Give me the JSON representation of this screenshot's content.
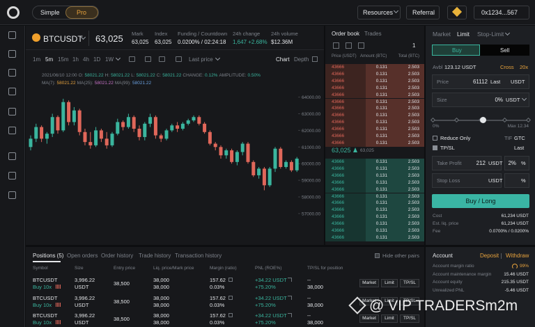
{
  "topbar": {
    "modes": [
      "Simple",
      "Pro"
    ],
    "links": [
      "Resources",
      "Referral"
    ],
    "wallet": "0x1234...567"
  },
  "ticker": {
    "symbol": "BTCUSDT",
    "price": "63,025",
    "stats": [
      {
        "label": "Mark",
        "value": "63,025"
      },
      {
        "label": "Index",
        "value": "63,025"
      },
      {
        "label": "Funding / Countdown",
        "value": "0.0200% / 02:24:18"
      },
      {
        "label": "24h change",
        "value": "1,647 +2.68%"
      },
      {
        "label": "24h volume",
        "value": "$12.36M"
      }
    ]
  },
  "chart_toolbar": {
    "intervals": [
      "1m",
      "5m",
      "15m",
      "1h",
      "4h",
      "1D",
      "1W"
    ],
    "price_type": "Last price",
    "views": [
      "Chart",
      "Depth"
    ]
  },
  "chart_info": {
    "date": "2021/06/10 12:00",
    "ohlc": [
      {
        "label": "O:",
        "value": "58021.22"
      },
      {
        "label": "H:",
        "value": "58021.22"
      },
      {
        "label": "L:",
        "value": "58021.22"
      },
      {
        "label": "C:",
        "value": "58021.22"
      },
      {
        "label": "CHANGE:",
        "value": "0.12%"
      },
      {
        "label": "AMPLITUDE:",
        "value": "0.50%"
      }
    ],
    "ma": [
      {
        "label": "MA(7):",
        "value": "58021.22"
      },
      {
        "label": "MA(25):",
        "value": "58021.22"
      },
      {
        "label": "MA(99):",
        "value": "58021.22"
      }
    ]
  },
  "chart_data": {
    "type": "candlestick",
    "series": {
      "open": [
        61000,
        61500,
        62200,
        61500,
        61800,
        62800,
        62000,
        63700,
        62500,
        63200,
        61900,
        61300,
        61100,
        62000,
        61500,
        61100,
        61800,
        62500,
        62200,
        62800,
        62100,
        61600,
        62400,
        62800,
        61700,
        61500,
        62000,
        62300,
        62100,
        62400,
        62600,
        62800,
        62400,
        61900,
        61200,
        61000,
        60500,
        60800,
        60100,
        60700,
        61200,
        60100,
        59300,
        59700,
        58700,
        59700,
        60900,
        59800,
        60100,
        59600
      ],
      "high": [
        61700,
        62400,
        62300,
        61900,
        63000,
        62900,
        63900,
        63800,
        63400,
        63300,
        62100,
        61900,
        62200,
        62100,
        61900,
        61900,
        62700,
        62600,
        63000,
        62900,
        62300,
        62500,
        63000,
        62900,
        61800,
        62100,
        62400,
        62500,
        62500,
        62700,
        62900,
        62900,
        62500,
        62000,
        61300,
        61100,
        60900,
        60900,
        60800,
        61300,
        61300,
        60200,
        59800,
        59800,
        59800,
        61000,
        61000,
        60200,
        60200,
        60400
      ],
      "low": [
        60800,
        61300,
        61300,
        61200,
        61600,
        61800,
        61900,
        62300,
        62300,
        61700,
        61100,
        60900,
        61000,
        61300,
        60900,
        61000,
        61700,
        62000,
        62100,
        61900,
        61400,
        61400,
        62200,
        61500,
        61300,
        61400,
        61900,
        61900,
        62000,
        62300,
        62500,
        62300,
        61800,
        61100,
        60800,
        60300,
        60300,
        60000,
        59900,
        60500,
        60000,
        59200,
        59100,
        58400,
        58600,
        59500,
        59700,
        59700,
        59500,
        59500
      ],
      "close": [
        61500,
        62200,
        61500,
        61800,
        62800,
        62000,
        63700,
        62500,
        63200,
        61900,
        61300,
        61100,
        62000,
        61500,
        61100,
        61800,
        62500,
        62200,
        62800,
        62100,
        61600,
        62400,
        62800,
        61700,
        61500,
        62000,
        62300,
        62100,
        62400,
        62600,
        62800,
        62400,
        61900,
        61200,
        61000,
        60500,
        60800,
        60100,
        60700,
        61200,
        60100,
        59300,
        59700,
        58700,
        59700,
        60900,
        59800,
        60100,
        59600,
        60300
      ]
    },
    "ylim": [
      55200,
      64400
    ],
    "yticks": [
      {
        "value": 64000,
        "label": "64000.00"
      },
      {
        "value": 63000,
        "label": "63000.00"
      },
      {
        "value": 62000,
        "label": "62000.00"
      },
      {
        "value": 61000,
        "label": "61000.00"
      },
      {
        "value": 60000,
        "label": "60000.00"
      },
      {
        "value": 59000,
        "label": "59000.00"
      },
      {
        "value": 58000,
        "label": "58000.00"
      },
      {
        "value": 57000,
        "label": "57000.00"
      }
    ],
    "colors": {
      "up": "#3ab59e",
      "down": "#e0675a"
    }
  },
  "order_book": {
    "tabs": [
      "Order book",
      "Trades"
    ],
    "group": "1",
    "headers": [
      "Price (USDT)",
      "Amount (BTC)",
      "Total (BTC)"
    ],
    "asks": [
      [
        "43666",
        "0.131",
        "2.503"
      ],
      [
        "43666",
        "0.131",
        "2.503"
      ],
      [
        "43666",
        "0.131",
        "2.503"
      ],
      [
        "43666",
        "0.131",
        "2.503"
      ],
      [
        "43666",
        "0.131",
        "2.503"
      ],
      [
        "43666",
        "0.131",
        "2.503"
      ],
      [
        "43666",
        "0.131",
        "2.503"
      ],
      [
        "43666",
        "0.131",
        "2.503"
      ],
      [
        "43666",
        "0.131",
        "2.503"
      ],
      [
        "43666",
        "0.131",
        "2.503"
      ],
      [
        "43666",
        "0.131",
        "2.503"
      ],
      [
        "43666",
        "0.131",
        "2.503"
      ]
    ],
    "last_price": "63,025",
    "mark_price": "63,025",
    "bids": [
      [
        "43666",
        "0.131",
        "2.503"
      ],
      [
        "43666",
        "0.131",
        "2.503"
      ],
      [
        "43666",
        "0.131",
        "2.503"
      ],
      [
        "43666",
        "0.131",
        "2.503"
      ],
      [
        "43666",
        "0.131",
        "2.503"
      ],
      [
        "43666",
        "0.131",
        "2.503"
      ],
      [
        "43666",
        "0.131",
        "2.503"
      ],
      [
        "43666",
        "0.131",
        "2.503"
      ],
      [
        "43666",
        "0.131",
        "2.503"
      ],
      [
        "43666",
        "0.131",
        "2.503"
      ],
      [
        "43666",
        "0.131",
        "2.503"
      ],
      [
        "43666",
        "0.131",
        "2.503"
      ]
    ]
  },
  "order_form": {
    "tabs": [
      "Market",
      "Limit",
      "Stop-Limit"
    ],
    "sides": [
      "Buy",
      "Sell"
    ],
    "available": {
      "label": "Avbl",
      "value": "123.12 USDT"
    },
    "margin_mode": "Cross",
    "leverage": "20x",
    "price": {
      "label": "Price",
      "value": "61112",
      "type": "Last",
      "unit": "USDT"
    },
    "size": {
      "label": "Size",
      "value": "0%",
      "unit": "USDT"
    },
    "slider": {
      "min": "0%",
      "max": "Max 12.34"
    },
    "reduce_only": "Reduce Only",
    "tif": {
      "label": "TIF",
      "value": "GTC"
    },
    "tpsl": {
      "label": "TP/SL",
      "trigger": "Last"
    },
    "take_profit": {
      "label": "Take Profit",
      "value": "212",
      "unit": "USDT",
      "percent": "2%",
      "percent_unit": "%"
    },
    "stop_loss": {
      "label": "Stop Loss",
      "unit": "USDT",
      "percent_unit": "%"
    },
    "submit": "Buy / Long",
    "summary": [
      {
        "label": "Cost",
        "value": "61,234 USDT"
      },
      {
        "label": "Est. liq. price",
        "value": "61,234 USDT"
      },
      {
        "label": "Fee",
        "value": "0.0700% / 0.0200%"
      }
    ]
  },
  "account": {
    "title": "Account",
    "actions": [
      "Deposit",
      "Withdraw"
    ],
    "rows": [
      {
        "label": "Account margin ratio",
        "value": "99%"
      },
      {
        "label": "Account maintenance margin",
        "value": "15.46 USDT"
      },
      {
        "label": "Account equity",
        "value": "215.35 USDT"
      },
      {
        "label": "Unrealized PNL",
        "value": "-5.46 USDT"
      }
    ]
  },
  "positions": {
    "tabs": [
      "Positions (5)",
      "Open orders",
      "Order history",
      "Trade history",
      "Transaction history"
    ],
    "hide_label": "Hide other pairs",
    "headers": [
      "Symbol",
      "Size",
      "Entry price",
      "Liq. price/Mark price",
      "Margin (ratio)",
      "PNL (ROE%)",
      "TP/SL for position"
    ],
    "rows": [
      {
        "symbol": "BTCUSDT",
        "side": "Buy 10x",
        "size": "3,996.22",
        "size_unit": "USDT",
        "entry": "38,500",
        "liq": "38,000",
        "mark": "38,000",
        "margin": "157.62",
        "ratio": "0.03%",
        "pnl": "+34.22 USDT",
        "roe": "+75.20%",
        "tp": "--",
        "sl": "38,000"
      },
      {
        "symbol": "BTCUSDT",
        "side": "Buy 10x",
        "size": "3,996.22",
        "size_unit": "USDT",
        "entry": "38,500",
        "liq": "38,000",
        "mark": "38,000",
        "margin": "157.62",
        "ratio": "0.03%",
        "pnl": "+34.22 USDT",
        "roe": "+75.20%",
        "tp": "--",
        "sl": "38,000"
      },
      {
        "symbol": "BTCUSDT",
        "side": "Buy 10x",
        "size": "3,996.22",
        "size_unit": "USDT",
        "entry": "38,500",
        "liq": "38,000",
        "mark": "38,000",
        "margin": "157.62",
        "ratio": "0.03%",
        "pnl": "+34.22 USDT",
        "roe": "+75.20%",
        "tp": "--",
        "sl": "38,000"
      }
    ],
    "actions": [
      "Market",
      "Limit",
      "TP/SL"
    ]
  },
  "watermark": "@ VIP TRADERSm2m"
}
